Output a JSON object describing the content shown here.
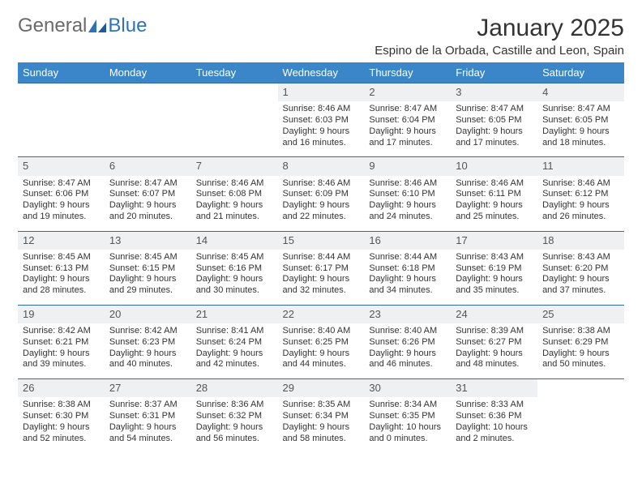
{
  "brand": {
    "part1": "General",
    "part2": "Blue"
  },
  "title": "January 2025",
  "location": "Espino de la Orbada, Castille and Leon, Spain",
  "colors": {
    "header_bg": "#3a86c8",
    "header_text": "#ffffff",
    "daynum_bg": "#eef0f2",
    "row_border": "#2f6aa3",
    "body_text": "#333333",
    "logo_gray": "#6a6a6a",
    "logo_blue": "#2e72b8"
  },
  "weekdays": [
    "Sunday",
    "Monday",
    "Tuesday",
    "Wednesday",
    "Thursday",
    "Friday",
    "Saturday"
  ],
  "weeks": [
    [
      null,
      null,
      null,
      {
        "n": "1",
        "sr": "8:46 AM",
        "ss": "6:03 PM",
        "dl": "9 hours and 16 minutes."
      },
      {
        "n": "2",
        "sr": "8:47 AM",
        "ss": "6:04 PM",
        "dl": "9 hours and 17 minutes."
      },
      {
        "n": "3",
        "sr": "8:47 AM",
        "ss": "6:05 PM",
        "dl": "9 hours and 17 minutes."
      },
      {
        "n": "4",
        "sr": "8:47 AM",
        "ss": "6:05 PM",
        "dl": "9 hours and 18 minutes."
      }
    ],
    [
      {
        "n": "5",
        "sr": "8:47 AM",
        "ss": "6:06 PM",
        "dl": "9 hours and 19 minutes."
      },
      {
        "n": "6",
        "sr": "8:47 AM",
        "ss": "6:07 PM",
        "dl": "9 hours and 20 minutes."
      },
      {
        "n": "7",
        "sr": "8:46 AM",
        "ss": "6:08 PM",
        "dl": "9 hours and 21 minutes."
      },
      {
        "n": "8",
        "sr": "8:46 AM",
        "ss": "6:09 PM",
        "dl": "9 hours and 22 minutes."
      },
      {
        "n": "9",
        "sr": "8:46 AM",
        "ss": "6:10 PM",
        "dl": "9 hours and 24 minutes."
      },
      {
        "n": "10",
        "sr": "8:46 AM",
        "ss": "6:11 PM",
        "dl": "9 hours and 25 minutes."
      },
      {
        "n": "11",
        "sr": "8:46 AM",
        "ss": "6:12 PM",
        "dl": "9 hours and 26 minutes."
      }
    ],
    [
      {
        "n": "12",
        "sr": "8:45 AM",
        "ss": "6:13 PM",
        "dl": "9 hours and 28 minutes."
      },
      {
        "n": "13",
        "sr": "8:45 AM",
        "ss": "6:15 PM",
        "dl": "9 hours and 29 minutes."
      },
      {
        "n": "14",
        "sr": "8:45 AM",
        "ss": "6:16 PM",
        "dl": "9 hours and 30 minutes."
      },
      {
        "n": "15",
        "sr": "8:44 AM",
        "ss": "6:17 PM",
        "dl": "9 hours and 32 minutes."
      },
      {
        "n": "16",
        "sr": "8:44 AM",
        "ss": "6:18 PM",
        "dl": "9 hours and 34 minutes."
      },
      {
        "n": "17",
        "sr": "8:43 AM",
        "ss": "6:19 PM",
        "dl": "9 hours and 35 minutes."
      },
      {
        "n": "18",
        "sr": "8:43 AM",
        "ss": "6:20 PM",
        "dl": "9 hours and 37 minutes."
      }
    ],
    [
      {
        "n": "19",
        "sr": "8:42 AM",
        "ss": "6:21 PM",
        "dl": "9 hours and 39 minutes."
      },
      {
        "n": "20",
        "sr": "8:42 AM",
        "ss": "6:23 PM",
        "dl": "9 hours and 40 minutes."
      },
      {
        "n": "21",
        "sr": "8:41 AM",
        "ss": "6:24 PM",
        "dl": "9 hours and 42 minutes."
      },
      {
        "n": "22",
        "sr": "8:40 AM",
        "ss": "6:25 PM",
        "dl": "9 hours and 44 minutes."
      },
      {
        "n": "23",
        "sr": "8:40 AM",
        "ss": "6:26 PM",
        "dl": "9 hours and 46 minutes."
      },
      {
        "n": "24",
        "sr": "8:39 AM",
        "ss": "6:27 PM",
        "dl": "9 hours and 48 minutes."
      },
      {
        "n": "25",
        "sr": "8:38 AM",
        "ss": "6:29 PM",
        "dl": "9 hours and 50 minutes."
      }
    ],
    [
      {
        "n": "26",
        "sr": "8:38 AM",
        "ss": "6:30 PM",
        "dl": "9 hours and 52 minutes."
      },
      {
        "n": "27",
        "sr": "8:37 AM",
        "ss": "6:31 PM",
        "dl": "9 hours and 54 minutes."
      },
      {
        "n": "28",
        "sr": "8:36 AM",
        "ss": "6:32 PM",
        "dl": "9 hours and 56 minutes."
      },
      {
        "n": "29",
        "sr": "8:35 AM",
        "ss": "6:34 PM",
        "dl": "9 hours and 58 minutes."
      },
      {
        "n": "30",
        "sr": "8:34 AM",
        "ss": "6:35 PM",
        "dl": "10 hours and 0 minutes."
      },
      {
        "n": "31",
        "sr": "8:33 AM",
        "ss": "6:36 PM",
        "dl": "10 hours and 2 minutes."
      },
      null
    ]
  ],
  "labels": {
    "sunrise": "Sunrise:",
    "sunset": "Sunset:",
    "daylight": "Daylight:"
  }
}
